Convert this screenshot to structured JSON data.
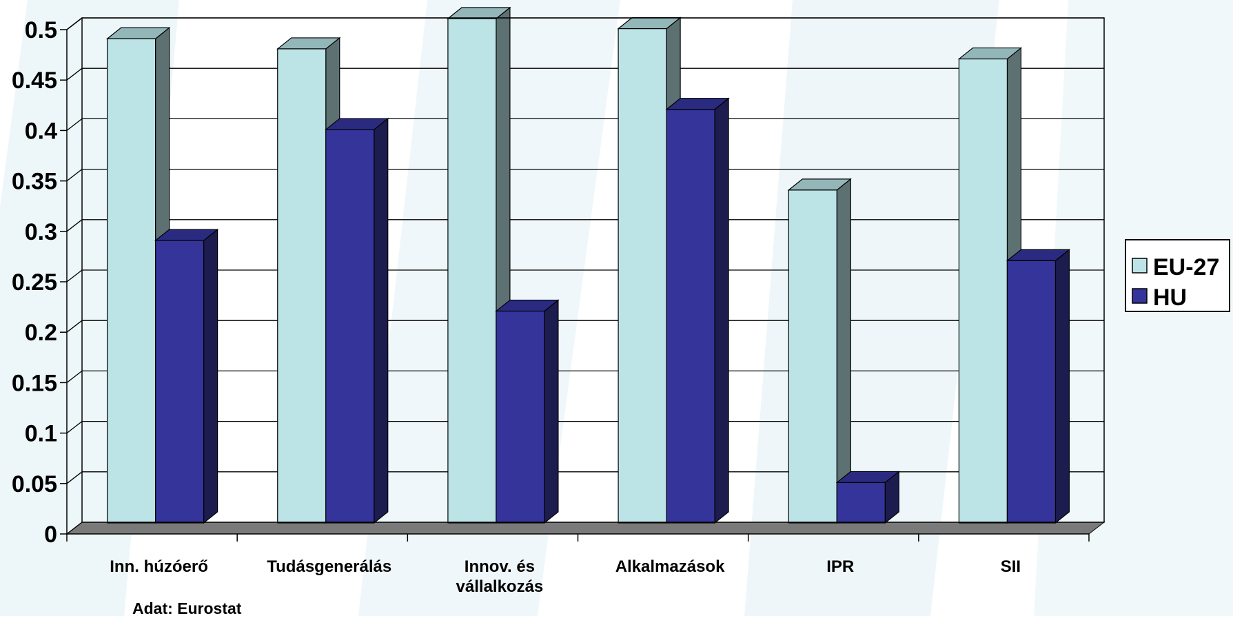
{
  "colors": {
    "eu27_front": "#BCE3E6",
    "eu27_top": "#93B7B9",
    "eu27_side": "#5D7173",
    "hu_front": "#34349A",
    "hu_top": "#2A2A80",
    "hu_side": "#1C1C4F",
    "floor": "#7A7A7A",
    "grid": "#000000",
    "background_watermark": "#E7F3F7"
  },
  "chart_data": {
    "type": "bar",
    "categories": [
      "Inn. húzóerő",
      "Tudásgenerálás",
      "Innov. és vállalkozás",
      "Alkalmazások",
      "IPR",
      "SII"
    ],
    "category_lines": [
      [
        "Inn. húzóerő"
      ],
      [
        "Tudásgenerálás"
      ],
      [
        "Innov. és",
        "vállalkozás"
      ],
      [
        "Alkalmazások"
      ],
      [
        "IPR"
      ],
      [
        "SII"
      ]
    ],
    "series": [
      {
        "name": "EU-27",
        "values": [
          0.48,
          0.47,
          0.5,
          0.49,
          0.33,
          0.46
        ]
      },
      {
        "name": "HU",
        "values": [
          0.28,
          0.39,
          0.21,
          0.41,
          0.04,
          0.26
        ]
      }
    ],
    "yticks": [
      "0",
      "0.05",
      "0.1",
      "0.15",
      "0.2",
      "0.25",
      "0.3",
      "0.35",
      "0.4",
      "0.45",
      "0.5"
    ],
    "ylim": [
      0,
      0.5
    ],
    "grid": true,
    "legend_position": "right",
    "three_d": true,
    "source_note": "Adat: Eurostat"
  }
}
